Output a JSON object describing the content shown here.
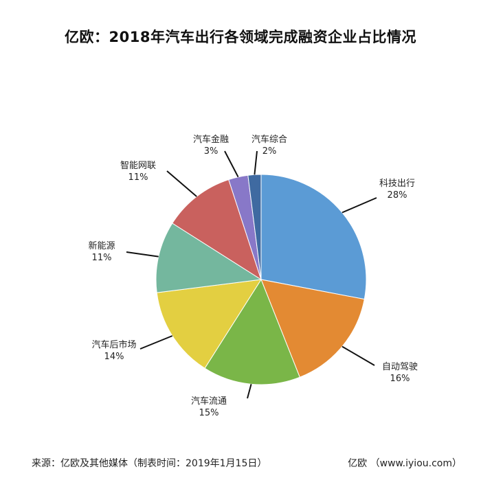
{
  "chart_data": {
    "type": "pie",
    "title": "亿欧：2018年汽车出行各领域完成融资企业占比情况",
    "categories": [
      "科技出行",
      "自动驾驶",
      "汽车流通",
      "汽车后市场",
      "新能源",
      "智能网联",
      "汽车金融",
      "汽车综合"
    ],
    "values": [
      28,
      16,
      15,
      14,
      11,
      11,
      3,
      2
    ],
    "value_labels": [
      "28%",
      "16%",
      "15%",
      "14%",
      "11%",
      "11%",
      "3%",
      "2%"
    ],
    "colors": [
      "#5b9bd5",
      "#e38a33",
      "#7ab648",
      "#e3cf41",
      "#74b79e",
      "#c9615e",
      "#8878c8",
      "#3f6aa1"
    ],
    "start": "12 o'clock, clockwise",
    "legend": "none"
  },
  "footer": {
    "source": "来源：亿欧及其他媒体（制表时间：2019年1月15日）",
    "brand": "亿欧 （www.iyiou.com）"
  }
}
